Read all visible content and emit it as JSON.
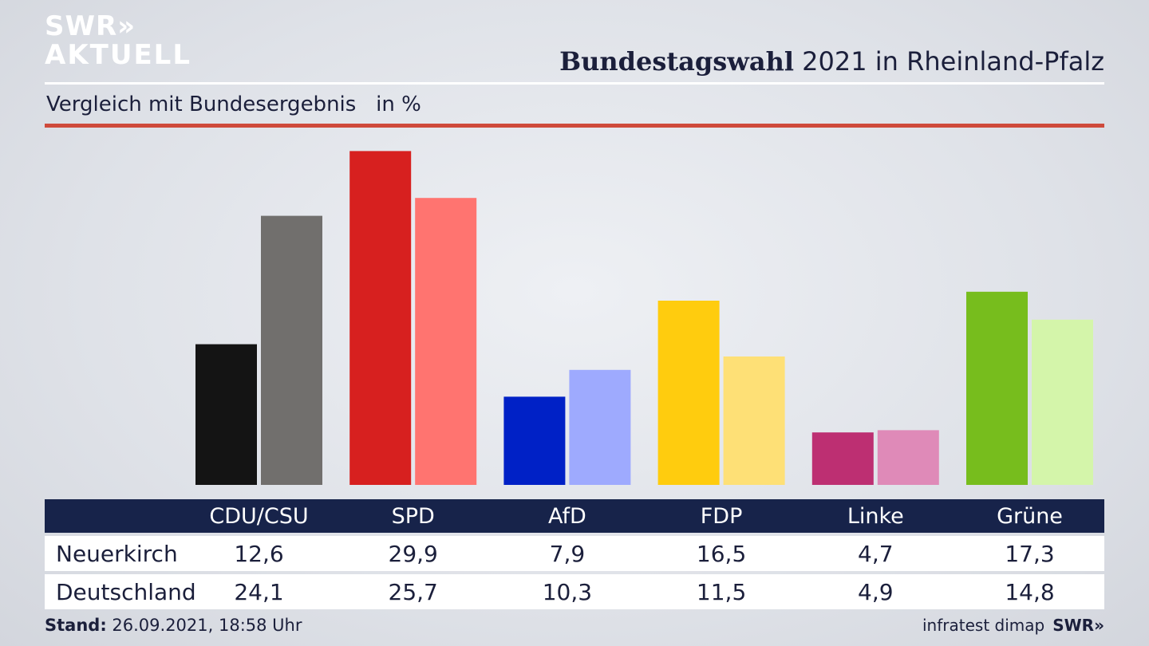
{
  "logo": {
    "line1": "SWR»",
    "line2": "AKTUELL"
  },
  "header": {
    "title_bold": "Bundestagswahl",
    "title_rest": " 2021 in Rheinland-Pfalz"
  },
  "subtitle": "Vergleich mit Bundesergebnis   in %",
  "chart_data": {
    "type": "bar",
    "categories": [
      "CDU/CSU",
      "SPD",
      "AfD",
      "FDP",
      "Linke",
      "Grüne"
    ],
    "series": [
      {
        "name": "Neuerkirch",
        "values": [
          12.6,
          29.9,
          7.9,
          16.5,
          4.7,
          17.3
        ]
      },
      {
        "name": "Deutschland",
        "values": [
          24.1,
          25.7,
          10.3,
          11.5,
          4.9,
          14.8
        ]
      }
    ],
    "ylim": [
      0,
      30
    ],
    "grid": false,
    "legend": "table-below",
    "colors": {
      "Neuerkirch": [
        "#141414",
        "#d7201f",
        "#0021c6",
        "#ffcc0e",
        "#bd2f72",
        "#77bd1d"
      ],
      "Deutschland": [
        "#716f6d",
        "#ff7470",
        "#9eaafe",
        "#fee076",
        "#df8ab8",
        "#d4f5aa"
      ]
    }
  },
  "table": {
    "rows": [
      {
        "label": "Neuerkirch",
        "values": [
          "12,6",
          "29,9",
          "7,9",
          "16,5",
          "4,7",
          "17,3"
        ]
      },
      {
        "label": "Deutschland",
        "values": [
          "24,1",
          "25,7",
          "10,3",
          "11,5",
          "4,9",
          "14,8"
        ]
      }
    ]
  },
  "footer": {
    "stand_label": "Stand:",
    "stand_value": " 26.09.2021, 18:58 Uhr",
    "source": "infratest dimap",
    "brand": "SWR»"
  }
}
